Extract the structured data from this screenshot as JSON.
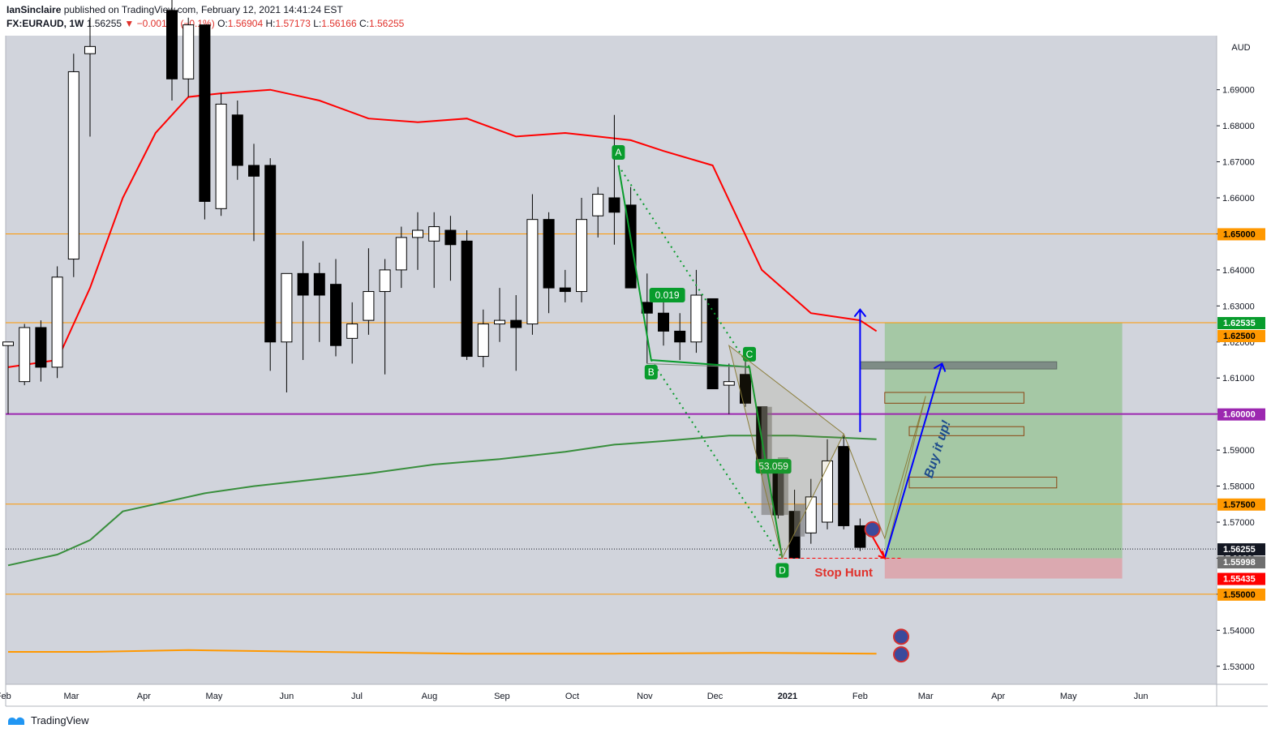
{
  "header": {
    "author": "IanSinclaire",
    "published_text": "published on TradingView.com, February 12, 2021 14:41:24 EST",
    "symbol": "FX:EURAUD, 1W",
    "last": "1.56255",
    "change_arrow": "▼",
    "change": "−0.00162 (−0.1%)",
    "o_label": "O:",
    "o_value": "1.56904",
    "h_label": "H:",
    "h_value": "1.57173",
    "l_label": "L:",
    "l_value": "1.56166",
    "c_label": "C:",
    "c_value": "1.56255"
  },
  "footer": {
    "brand": "TradingView",
    "logo_icon": "tradingview-logo-icon"
  },
  "colors": {
    "background": "#d1d4dc",
    "bull": "#ffffff",
    "bear": "#000000",
    "ema_red": "#ff0000",
    "ma_green": "#388e3c",
    "ma_orange": "#ff9800",
    "purple": "#9c27b0",
    "pattern_green": "#089c2c",
    "target_green": "#a5c8a5",
    "stop_red": "#dba9b0"
  },
  "chart_data": {
    "type": "candlestick",
    "timeframe": "1W",
    "currency": "AUD",
    "ylim": [
      1.525,
      1.705
    ],
    "ytick_labels": [
      "1.69000",
      "1.68000",
      "1.67000",
      "1.66000",
      "1.65000",
      "1.64000",
      "1.63000",
      "1.62000",
      "1.61000",
      "1.60000",
      "1.59000",
      "1.58000",
      "1.57000",
      "1.56000",
      "1.55000",
      "1.54000",
      "1.53000"
    ],
    "x_labels": [
      "Feb",
      "Mar",
      "Apr",
      "May",
      "Jun",
      "Jul",
      "Aug",
      "Sep",
      "Oct",
      "Nov",
      "Dec",
      "2021",
      "Feb",
      "Mar",
      "Apr",
      "May",
      "Jun"
    ],
    "candles": [
      {
        "date": "2020-02-03",
        "o": 1.619,
        "h": 1.62,
        "l": 1.6,
        "c": 1.62
      },
      {
        "date": "2020-02-10",
        "o": 1.609,
        "h": 1.625,
        "l": 1.608,
        "c": 1.624
      },
      {
        "date": "2020-02-17",
        "o": 1.624,
        "h": 1.626,
        "l": 1.609,
        "c": 1.613
      },
      {
        "date": "2020-02-24",
        "o": 1.613,
        "h": 1.641,
        "l": 1.61,
        "c": 1.638
      },
      {
        "date": "2020-03-02",
        "o": 1.643,
        "h": 1.7,
        "l": 1.638,
        "c": 1.695
      },
      {
        "date": "2020-03-09",
        "o": 1.7,
        "h": 1.71,
        "l": 1.677,
        "c": 1.702
      },
      {
        "date": "2020-04-13",
        "o": 1.712,
        "h": 1.72,
        "l": 1.687,
        "c": 1.693
      },
      {
        "date": "2020-04-20",
        "o": 1.693,
        "h": 1.71,
        "l": 1.688,
        "c": 1.708
      },
      {
        "date": "2020-04-27",
        "o": 1.708,
        "h": 1.708,
        "l": 1.654,
        "c": 1.659
      },
      {
        "date": "2020-05-04",
        "o": 1.657,
        "h": 1.689,
        "l": 1.655,
        "c": 1.686
      },
      {
        "date": "2020-05-11",
        "o": 1.683,
        "h": 1.687,
        "l": 1.665,
        "c": 1.669
      },
      {
        "date": "2020-05-18",
        "o": 1.669,
        "h": 1.675,
        "l": 1.648,
        "c": 1.666
      },
      {
        "date": "2020-05-25",
        "o": 1.669,
        "h": 1.671,
        "l": 1.612,
        "c": 1.62
      },
      {
        "date": "2020-06-01",
        "o": 1.62,
        "h": 1.639,
        "l": 1.606,
        "c": 1.639
      },
      {
        "date": "2020-06-08",
        "o": 1.639,
        "h": 1.648,
        "l": 1.615,
        "c": 1.633
      },
      {
        "date": "2020-06-15",
        "o": 1.639,
        "h": 1.642,
        "l": 1.62,
        "c": 1.633
      },
      {
        "date": "2020-06-22",
        "o": 1.636,
        "h": 1.643,
        "l": 1.616,
        "c": 1.619
      },
      {
        "date": "2020-06-29",
        "o": 1.621,
        "h": 1.631,
        "l": 1.614,
        "c": 1.625
      },
      {
        "date": "2020-07-06",
        "o": 1.626,
        "h": 1.646,
        "l": 1.622,
        "c": 1.634
      },
      {
        "date": "2020-07-13",
        "o": 1.634,
        "h": 1.643,
        "l": 1.611,
        "c": 1.64
      },
      {
        "date": "2020-07-20",
        "o": 1.64,
        "h": 1.652,
        "l": 1.635,
        "c": 1.649
      },
      {
        "date": "2020-07-27",
        "o": 1.649,
        "h": 1.656,
        "l": 1.64,
        "c": 1.651
      },
      {
        "date": "2020-08-03",
        "o": 1.648,
        "h": 1.656,
        "l": 1.635,
        "c": 1.652
      },
      {
        "date": "2020-08-10",
        "o": 1.651,
        "h": 1.655,
        "l": 1.637,
        "c": 1.647
      },
      {
        "date": "2020-08-17",
        "o": 1.648,
        "h": 1.651,
        "l": 1.615,
        "c": 1.616
      },
      {
        "date": "2020-08-24",
        "o": 1.616,
        "h": 1.629,
        "l": 1.613,
        "c": 1.625
      },
      {
        "date": "2020-08-31",
        "o": 1.625,
        "h": 1.635,
        "l": 1.62,
        "c": 1.626
      },
      {
        "date": "2020-09-07",
        "o": 1.626,
        "h": 1.633,
        "l": 1.612,
        "c": 1.624
      },
      {
        "date": "2020-09-14",
        "o": 1.625,
        "h": 1.661,
        "l": 1.622,
        "c": 1.654
      },
      {
        "date": "2020-09-21",
        "o": 1.654,
        "h": 1.656,
        "l": 1.628,
        "c": 1.635
      },
      {
        "date": "2020-09-28",
        "o": 1.635,
        "h": 1.64,
        "l": 1.631,
        "c": 1.634
      },
      {
        "date": "2020-10-05",
        "o": 1.634,
        "h": 1.66,
        "l": 1.631,
        "c": 1.654
      },
      {
        "date": "2020-10-12",
        "o": 1.655,
        "h": 1.663,
        "l": 1.649,
        "c": 1.661
      },
      {
        "date": "2020-10-19",
        "o": 1.66,
        "h": 1.683,
        "l": 1.647,
        "c": 1.656
      },
      {
        "date": "2020-10-26",
        "o": 1.658,
        "h": 1.663,
        "l": 1.635,
        "c": 1.635
      },
      {
        "date": "2020-11-02",
        "o": 1.631,
        "h": 1.639,
        "l": 1.614,
        "c": 1.628
      },
      {
        "date": "2020-11-09",
        "o": 1.628,
        "h": 1.631,
        "l": 1.619,
        "c": 1.623
      },
      {
        "date": "2020-11-16",
        "o": 1.623,
        "h": 1.628,
        "l": 1.615,
        "c": 1.62
      },
      {
        "date": "2020-11-23",
        "o": 1.62,
        "h": 1.64,
        "l": 1.617,
        "c": 1.633
      },
      {
        "date": "2020-11-30",
        "o": 1.632,
        "h": 1.632,
        "l": 1.607,
        "c": 1.607
      },
      {
        "date": "2020-12-07",
        "o": 1.608,
        "h": 1.614,
        "l": 1.6,
        "c": 1.609
      },
      {
        "date": "2020-12-14",
        "o": 1.611,
        "h": 1.618,
        "l": 1.602,
        "c": 1.603
      },
      {
        "date": "2020-12-21",
        "o": 1.602,
        "h": 1.602,
        "l": 1.583,
        "c": 1.586
      },
      {
        "date": "2020-12-28",
        "o": 1.586,
        "h": 1.587,
        "l": 1.571,
        "c": 1.572
      },
      {
        "date": "2021-01-04",
        "o": 1.573,
        "h": 1.579,
        "l": 1.56,
        "c": 1.56
      },
      {
        "date": "2021-01-11",
        "o": 1.567,
        "h": 1.582,
        "l": 1.564,
        "c": 1.577
      },
      {
        "date": "2021-01-18",
        "o": 1.57,
        "h": 1.593,
        "l": 1.568,
        "c": 1.587
      },
      {
        "date": "2021-01-25",
        "o": 1.591,
        "h": 1.594,
        "l": 1.568,
        "c": 1.569
      },
      {
        "date": "2021-02-01",
        "o": 1.569,
        "h": 1.571,
        "l": 1.562,
        "c": 1.563
      }
    ],
    "ghost_candles": [
      {
        "date": "2020-12-21",
        "o": 1.602,
        "h": 1.602,
        "l": 1.57,
        "c": 1.572
      },
      {
        "date": "2020-12-28",
        "o": 1.588,
        "h": 1.588,
        "l": 1.57,
        "c": 1.572
      },
      {
        "date": "2021-01-04",
        "o": 1.575,
        "h": 1.575,
        "l": 1.566,
        "c": 1.566
      }
    ],
    "moving_averages": [
      {
        "name": "red_ma",
        "color": "#ff0000",
        "points": [
          [
            "2020-02-03",
            1.613
          ],
          [
            "2020-02-24",
            1.615
          ],
          [
            "2020-03-09",
            1.635
          ],
          [
            "2020-03-23",
            1.66
          ],
          [
            "2020-04-06",
            1.678
          ],
          [
            "2020-04-20",
            1.688
          ],
          [
            "2020-05-04",
            1.689
          ],
          [
            "2020-05-25",
            1.69
          ],
          [
            "2020-06-15",
            1.687
          ],
          [
            "2020-07-06",
            1.682
          ],
          [
            "2020-07-27",
            1.681
          ],
          [
            "2020-08-17",
            1.682
          ],
          [
            "2020-09-07",
            1.677
          ],
          [
            "2020-09-28",
            1.678
          ],
          [
            "2020-10-12",
            1.677
          ],
          [
            "2020-10-26",
            1.676
          ],
          [
            "2020-11-09",
            1.673
          ],
          [
            "2020-11-30",
            1.669
          ],
          [
            "2020-12-21",
            1.64
          ],
          [
            "2021-01-11",
            1.628
          ],
          [
            "2021-02-01",
            1.626
          ],
          [
            "2021-02-08",
            1.623
          ]
        ]
      },
      {
        "name": "green_ma",
        "color": "#388e3c",
        "points": [
          [
            "2020-02-03",
            1.558
          ],
          [
            "2020-02-24",
            1.561
          ],
          [
            "2020-03-09",
            1.565
          ],
          [
            "2020-03-23",
            1.573
          ],
          [
            "2020-04-06",
            1.575
          ],
          [
            "2020-04-27",
            1.578
          ],
          [
            "2020-05-18",
            1.58
          ],
          [
            "2020-06-15",
            1.582
          ],
          [
            "2020-07-06",
            1.5835
          ],
          [
            "2020-08-03",
            1.586
          ],
          [
            "2020-08-31",
            1.5875
          ],
          [
            "2020-09-28",
            1.5895
          ],
          [
            "2020-10-19",
            1.5915
          ],
          [
            "2020-11-09",
            1.5925
          ],
          [
            "2020-12-07",
            1.594
          ],
          [
            "2021-01-04",
            1.594
          ],
          [
            "2021-02-08",
            1.593
          ]
        ]
      },
      {
        "name": "orange_ma",
        "color": "#ff9800",
        "points": [
          [
            "2020-02-03",
            1.534
          ],
          [
            "2020-03-09",
            1.534
          ],
          [
            "2020-04-20",
            1.5345
          ],
          [
            "2020-06-15",
            1.534
          ],
          [
            "2020-08-17",
            1.5335
          ],
          [
            "2020-10-19",
            1.5335
          ],
          [
            "2020-12-21",
            1.5337
          ],
          [
            "2021-02-08",
            1.5335
          ]
        ]
      }
    ],
    "horizontal_levels": [
      {
        "price": 1.65,
        "label": "1.65000",
        "color": "#ff9800"
      },
      {
        "price": 1.62535,
        "label": "1.62535",
        "color": "#ff9800"
      },
      {
        "price": 1.6,
        "label": "1.60000",
        "color": "#9c27b0"
      },
      {
        "price": 1.575,
        "label": "1.57500",
        "color": "#ff9800"
      },
      {
        "price": 1.55,
        "label": "1.55000",
        "color": "#ff9800"
      }
    ],
    "price_tags": [
      {
        "price": 1.65,
        "label": "1.65000",
        "bg": "#ff9800",
        "fg": "#000000"
      },
      {
        "price": 1.62535,
        "label": "1.62535",
        "bg": "#089c2c",
        "fg": "#ffffff"
      },
      {
        "price": 1.625,
        "label": "1.62500",
        "bg": "#ff9800",
        "fg": "#000000"
      },
      {
        "price": 1.6,
        "label": "1.60000",
        "bg": "#9c27b0",
        "fg": "#ffffff"
      },
      {
        "price": 1.575,
        "label": "1.57500",
        "bg": "#ff9800",
        "fg": "#000000"
      },
      {
        "price": 1.56255,
        "label": "1.56255",
        "bg": "#131722",
        "fg": "#ffffff"
      },
      {
        "price": 1.55998,
        "label": "1.55998",
        "bg": "#6f6f6f",
        "fg": "#ffffff"
      },
      {
        "price": 1.55435,
        "label": "1.55435",
        "bg": "#ff0000",
        "fg": "#ffffff"
      },
      {
        "price": 1.55,
        "label": "1.55000",
        "bg": "#ff9800",
        "fg": "#000000"
      }
    ],
    "current_price": 1.56255,
    "abcd_pattern": {
      "points": [
        {
          "label": "A",
          "date": "2020-10-19",
          "price": 1.669
        },
        {
          "label": "B",
          "date": "2020-11-02",
          "price": 1.615
        },
        {
          "label": "C",
          "date": "2020-12-14",
          "price": 1.613
        },
        {
          "label": "D",
          "date": "2020-12-28",
          "price": 1.56
        }
      ],
      "ratio_labels": [
        "0.019",
        "53.059"
      ]
    },
    "annotations": {
      "stop_hunt": "Stop Hunt",
      "buy_text": "Buy it up!"
    },
    "position": {
      "start": "2021-02-15",
      "end": "2021-05-24",
      "entry": 1.55998,
      "target": 1.62535,
      "stop": 1.55435
    }
  }
}
